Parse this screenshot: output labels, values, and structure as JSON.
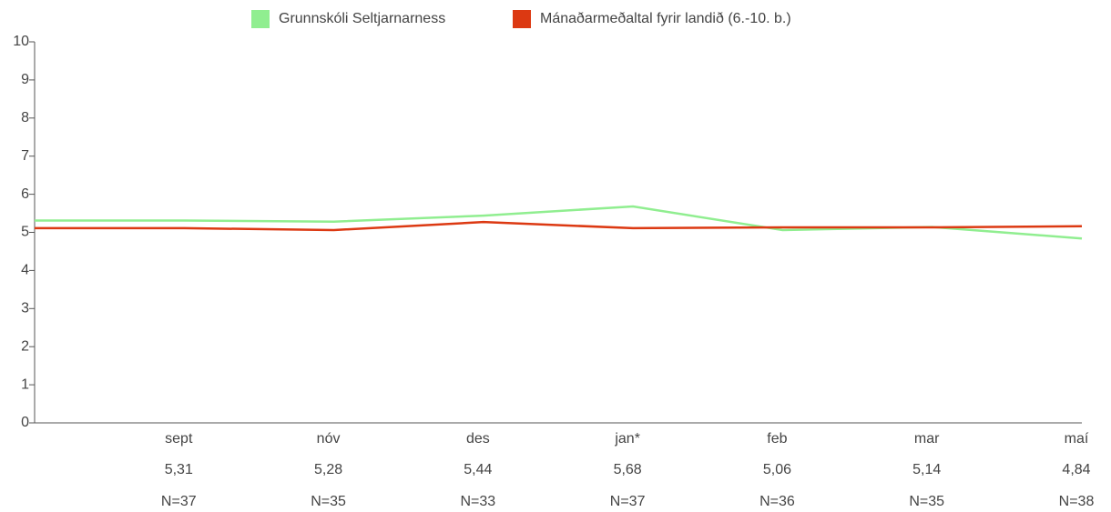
{
  "chart_data": {
    "type": "line",
    "categories": [
      null,
      "sept",
      "nóv",
      "des",
      "jan*",
      "feb",
      "mar",
      "maí"
    ],
    "series": [
      {
        "name": "Grunnskóli Seltjarnarness",
        "color": "#90ee90",
        "values": [
          5.31,
          5.31,
          5.28,
          5.44,
          5.68,
          5.06,
          5.14,
          4.84
        ],
        "value_labels": [
          null,
          "5,31",
          "5,28",
          "5,44",
          "5,68",
          "5,06",
          "5,14",
          "4,84"
        ]
      },
      {
        "name": "Mánaðarmeðaltal fyrir landið (6.-10. b.)",
        "color": "#dc3912",
        "values": [
          5.11,
          5.11,
          5.06,
          5.27,
          5.11,
          5.13,
          5.13,
          5.16
        ]
      }
    ],
    "n_labels": [
      null,
      "N=37",
      "N=35",
      "N=33",
      "N=37",
      "N=36",
      "N=35",
      "N=38"
    ],
    "ylim": [
      0,
      10
    ],
    "yticks": [
      0,
      1,
      2,
      3,
      4,
      5,
      6,
      7,
      8,
      9,
      10
    ],
    "legend": "top"
  }
}
